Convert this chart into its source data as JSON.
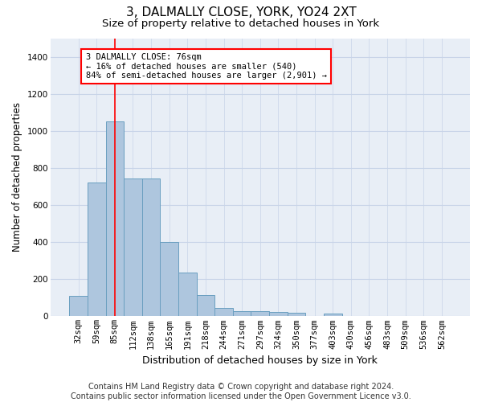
{
  "title": "3, DALMALLY CLOSE, YORK, YO24 2XT",
  "subtitle": "Size of property relative to detached houses in York",
  "xlabel": "Distribution of detached houses by size in York",
  "ylabel": "Number of detached properties",
  "footer_line1": "Contains HM Land Registry data © Crown copyright and database right 2024.",
  "footer_line2": "Contains public sector information licensed under the Open Government Licence v3.0.",
  "categories": [
    "32sqm",
    "59sqm",
    "85sqm",
    "112sqm",
    "138sqm",
    "165sqm",
    "191sqm",
    "218sqm",
    "244sqm",
    "271sqm",
    "297sqm",
    "324sqm",
    "350sqm",
    "377sqm",
    "403sqm",
    "430sqm",
    "456sqm",
    "483sqm",
    "509sqm",
    "536sqm",
    "562sqm"
  ],
  "bar_values": [
    110,
    720,
    1050,
    745,
    745,
    400,
    235,
    115,
    45,
    28,
    28,
    22,
    18,
    0,
    14,
    0,
    0,
    0,
    0,
    0,
    0
  ],
  "bar_color": "#aec6de",
  "bar_edge_color": "#6a9fc0",
  "bar_edge_width": 0.7,
  "vline_x_index": 2,
  "vline_color": "red",
  "annotation_box_text": "3 DALMALLY CLOSE: 76sqm\n← 16% of detached houses are smaller (540)\n84% of semi-detached houses are larger (2,901) →",
  "ylim": [
    0,
    1500
  ],
  "yticks": [
    0,
    200,
    400,
    600,
    800,
    1000,
    1200,
    1400
  ],
  "grid_color": "#c8d4e8",
  "bg_color": "#e8eef6",
  "title_fontsize": 11,
  "subtitle_fontsize": 9.5,
  "xlabel_fontsize": 9,
  "ylabel_fontsize": 8.5,
  "tick_fontsize": 7.5,
  "footer_fontsize": 7
}
